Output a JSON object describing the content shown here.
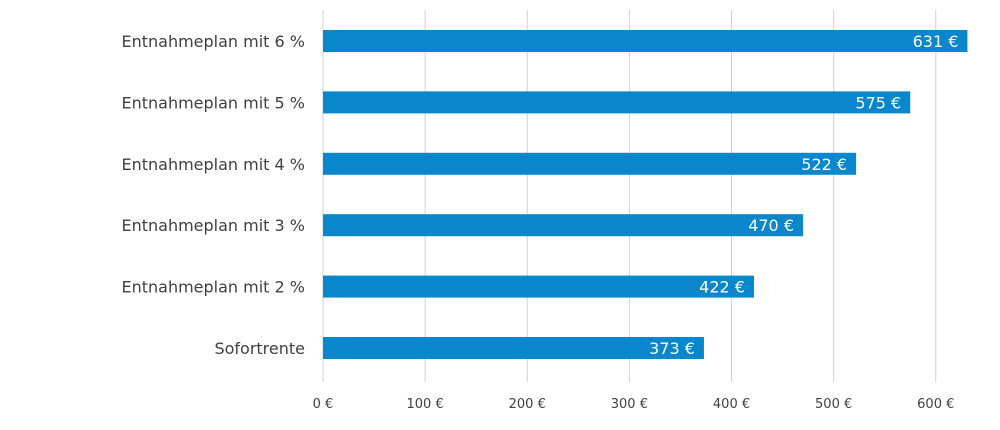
{
  "chart_data": {
    "type": "bar",
    "orientation": "horizontal",
    "categories": [
      "Entnahmeplan mit 6 %",
      "Entnahmeplan mit 5 %",
      "Entnahmeplan mit 4 %",
      "Entnahmeplan mit 3 %",
      "Entnahmeplan mit 2 %",
      "Sofortrente"
    ],
    "values": [
      631,
      575,
      522,
      470,
      422,
      373
    ],
    "value_labels": [
      "631 €",
      "575 €",
      "522 €",
      "470 €",
      "422 €",
      "373 €"
    ],
    "x_ticks": [
      0,
      100,
      200,
      300,
      400,
      500,
      600
    ],
    "x_tick_labels": [
      "0 €",
      "100 €",
      "200 €",
      "300 €",
      "400 €",
      "500 €",
      "600 €"
    ],
    "xlim": [
      0,
      650
    ],
    "grid": true,
    "legend": "none",
    "bar_color": "#0a86cc",
    "title": "",
    "xlabel": "",
    "ylabel": ""
  }
}
